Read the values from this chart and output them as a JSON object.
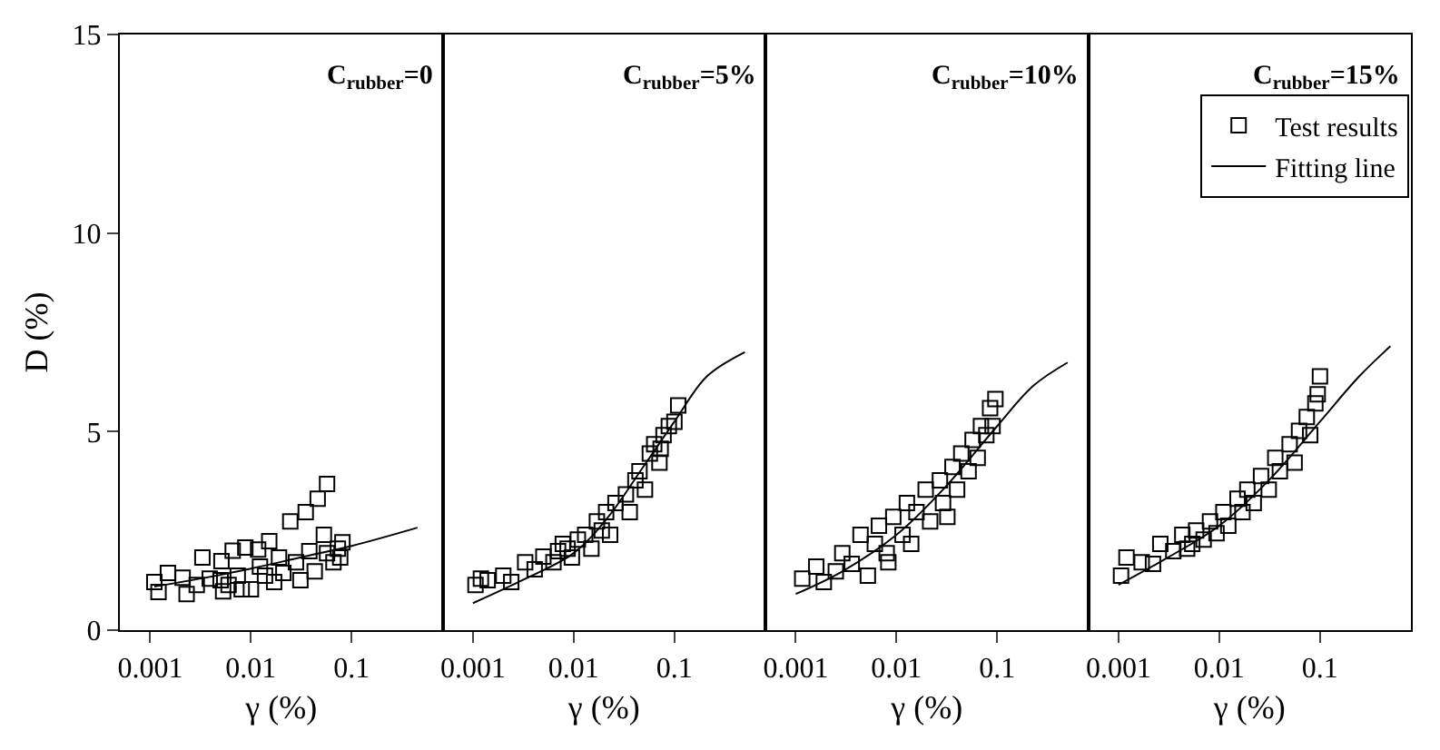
{
  "chart_data": [
    {
      "type": "scatter",
      "title": "C$_{rubber}$=0",
      "xlabel": "γ (%)",
      "ylabel": "D (%)",
      "log": "x",
      "xlim": [
        0.0005,
        0.8
      ],
      "xticks": [
        0.001,
        0.01,
        0.1
      ],
      "ylim": [
        0,
        15
      ],
      "yticks": [
        0,
        5,
        10,
        15
      ],
      "marker": "square",
      "legend": false,
      "grid": false,
      "series": [
        {
          "color": "#000000",
          "x": [
            0.0011,
            0.00121,
            0.0015,
            0.0021,
            0.0023,
            0.0033,
            0.0039,
            0.0051,
            0.0053,
            0.0066,
            0.0088,
            0.01,
            0.0118,
            0.0152,
            0.0138,
            0.017,
            0.021,
            0.0246,
            0.031,
            0.035,
            0.043,
            0.046,
            0.057,
            0.053,
            0.057,
            0.066,
            0.073,
            0.081,
            0.077,
            0.028,
            0.0074,
            0.005,
            0.0029,
            0.0123,
            0.0081,
            0.006,
            0.038,
            0.019
          ],
          "values": [
            1.21,
            0.96,
            1.44,
            1.32,
            0.91,
            1.83,
            1.3,
            1.74,
            0.98,
            2.0,
            2.08,
            1.03,
            2.03,
            2.24,
            1.37,
            1.21,
            1.44,
            2.74,
            1.26,
            2.97,
            1.48,
            3.31,
            3.68,
            2.4,
            1.94,
            1.71,
            2.05,
            2.21,
            1.83,
            1.71,
            1.37,
            1.26,
            1.14,
            1.6,
            1.03,
            1.14,
            1.99,
            1.83
          ]
        },
        {
          "type": "line",
          "marker": "none",
          "color": "#000000",
          "line_style": "solid",
          "x": [
            0.0011,
            0.0032,
            0.01,
            0.031,
            0.1,
            0.45
          ],
          "values": [
            1.1,
            1.3,
            1.55,
            1.83,
            2.12,
            2.58
          ]
        }
      ]
    },
    {
      "type": "scatter",
      "title": "C$_{rubber}$=5%",
      "xlabel": "γ (%)",
      "log": "x",
      "xlim": [
        0.0005,
        0.8
      ],
      "xticks": [
        0.001,
        0.01,
        0.1
      ],
      "ylim": [
        0,
        15
      ],
      "yticks": [
        0,
        5,
        10,
        15
      ],
      "marker": "square",
      "legend": false,
      "grid": false,
      "tick_labels": "x",
      "series": [
        {
          "color": "#000000",
          "x": [
            0.00106,
            0.0012,
            0.0014,
            0.002,
            0.0024,
            0.0033,
            0.0041,
            0.005,
            0.0063,
            0.007,
            0.0087,
            0.0096,
            0.011,
            0.013,
            0.015,
            0.017,
            0.021,
            0.023,
            0.026,
            0.033,
            0.036,
            0.041,
            0.045,
            0.051,
            0.057,
            0.063,
            0.071,
            0.078,
            0.088,
            0.1,
            0.109,
            0.073,
            0.019,
            0.0078
          ],
          "values": [
            1.14,
            1.3,
            1.26,
            1.37,
            1.21,
            1.71,
            1.53,
            1.85,
            1.71,
            1.99,
            2.05,
            1.83,
            2.28,
            2.4,
            2.05,
            2.74,
            2.97,
            2.4,
            3.2,
            3.42,
            2.97,
            3.77,
            4.0,
            3.54,
            4.45,
            4.68,
            4.22,
            4.91,
            5.14,
            5.25,
            5.66,
            4.57,
            2.51,
            2.17
          ]
        },
        {
          "type": "line",
          "marker": "none",
          "color": "#000000",
          "line_style": "solid",
          "x": [
            0.001,
            0.0031,
            0.01,
            0.022,
            0.049,
            0.1,
            0.21,
            0.5
          ],
          "values": [
            0.68,
            1.26,
            1.94,
            2.85,
            4.11,
            5.25,
            6.39,
            7.0
          ]
        }
      ]
    },
    {
      "type": "scatter",
      "title": "C$_{rubber}$=10%",
      "xlabel": "γ (%)",
      "log": "x",
      "xlim": [
        0.0005,
        0.8
      ],
      "xticks": [
        0.001,
        0.01,
        0.1
      ],
      "ylim": [
        0,
        15
      ],
      "yticks": [
        0,
        5,
        10,
        15
      ],
      "marker": "square",
      "legend": false,
      "grid": false,
      "tick_labels": "x",
      "series": [
        {
          "color": "#000000",
          "x": [
            0.00116,
            0.0016,
            0.0019,
            0.0025,
            0.0029,
            0.0036,
            0.0044,
            0.0052,
            0.0061,
            0.0067,
            0.008,
            0.0093,
            0.0115,
            0.0127,
            0.014,
            0.0158,
            0.0195,
            0.0216,
            0.027,
            0.029,
            0.036,
            0.04,
            0.044,
            0.052,
            0.057,
            0.064,
            0.069,
            0.078,
            0.085,
            0.096,
            0.09,
            0.0083,
            0.032
          ],
          "values": [
            1.3,
            1.6,
            1.21,
            1.48,
            1.94,
            1.67,
            2.4,
            1.37,
            2.17,
            2.63,
            1.94,
            2.85,
            2.4,
            3.2,
            2.17,
            2.97,
            3.54,
            2.74,
            3.77,
            3.2,
            4.11,
            3.54,
            4.45,
            4.0,
            4.79,
            4.34,
            5.14,
            4.91,
            5.59,
            5.82,
            5.14,
            1.71,
            2.85
          ]
        },
        {
          "type": "line",
          "marker": "none",
          "color": "#000000",
          "line_style": "solid",
          "x": [
            0.001,
            0.0029,
            0.01,
            0.029,
            0.1,
            0.23,
            0.5
          ],
          "values": [
            0.91,
            1.48,
            2.4,
            3.54,
            5.14,
            6.16,
            6.74
          ]
        }
      ]
    },
    {
      "type": "scatter",
      "title": "C$_{rubber}$=15%",
      "xlabel": "γ (%)",
      "log": "x",
      "xlim": [
        0.0005,
        0.8
      ],
      "xticks": [
        0.001,
        0.01,
        0.1
      ],
      "ylim": [
        0,
        15
      ],
      "yticks": [
        0,
        5,
        10,
        15
      ],
      "marker": "square",
      "legend": "top right",
      "grid": false,
      "tick_labels": "x",
      "series": [
        {
          "name": "Test results",
          "color": "#000000",
          "x": [
            0.00106,
            0.0012,
            0.0017,
            0.0022,
            0.0026,
            0.0035,
            0.0043,
            0.0048,
            0.0059,
            0.007,
            0.0081,
            0.0094,
            0.011,
            0.0123,
            0.0152,
            0.017,
            0.019,
            0.022,
            0.026,
            0.031,
            0.036,
            0.04,
            0.05,
            0.056,
            0.062,
            0.074,
            0.08,
            0.095,
            0.1,
            0.09,
            0.0054
          ],
          "values": [
            1.37,
            1.83,
            1.71,
            1.67,
            2.17,
            1.99,
            2.4,
            2.05,
            2.51,
            2.28,
            2.74,
            2.44,
            2.97,
            2.63,
            3.31,
            2.97,
            3.54,
            3.2,
            3.88,
            3.54,
            4.34,
            4.0,
            4.68,
            4.22,
            5.02,
            5.37,
            4.91,
            5.94,
            6.39,
            5.71,
            2.17
          ]
        },
        {
          "type": "line",
          "marker": "none",
          "name": "Fitting line",
          "color": "#000000",
          "line_style": "solid",
          "x": [
            0.001,
            0.0031,
            0.01,
            0.031,
            0.1,
            0.245,
            0.5
          ],
          "values": [
            1.14,
            1.83,
            2.63,
            3.77,
            5.25,
            6.39,
            7.15
          ]
        }
      ]
    }
  ]
}
